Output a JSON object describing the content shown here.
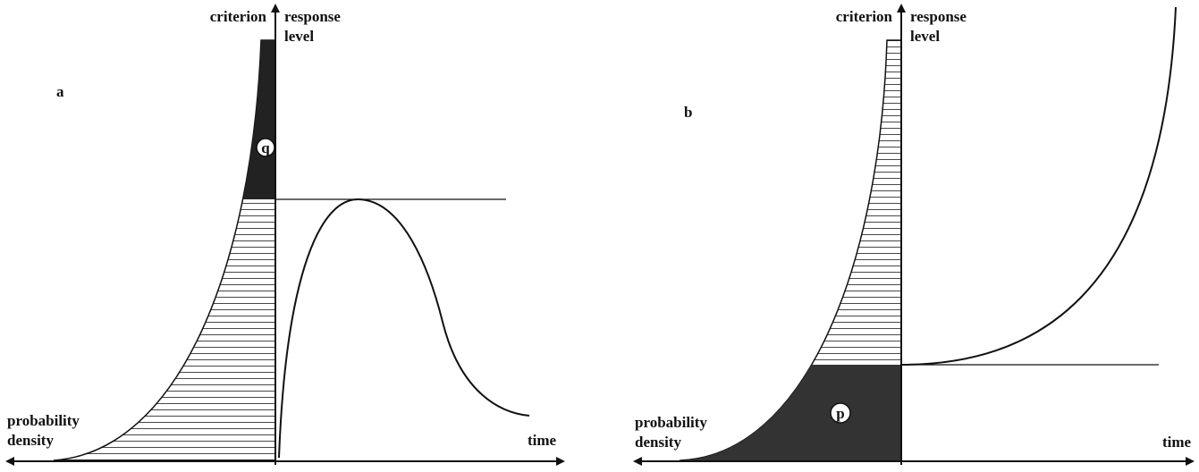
{
  "panels": [
    {
      "letter": "a",
      "criterion": "criterion",
      "response_level": [
        "response",
        "level"
      ],
      "probability_density": [
        "probability",
        "density"
      ],
      "time": "time",
      "marker": "q"
    },
    {
      "letter": "b",
      "criterion": "criterion",
      "response_level": [
        "response",
        "level"
      ],
      "probability_density": [
        "probability",
        "density"
      ],
      "time": "time",
      "marker": "p"
    }
  ]
}
